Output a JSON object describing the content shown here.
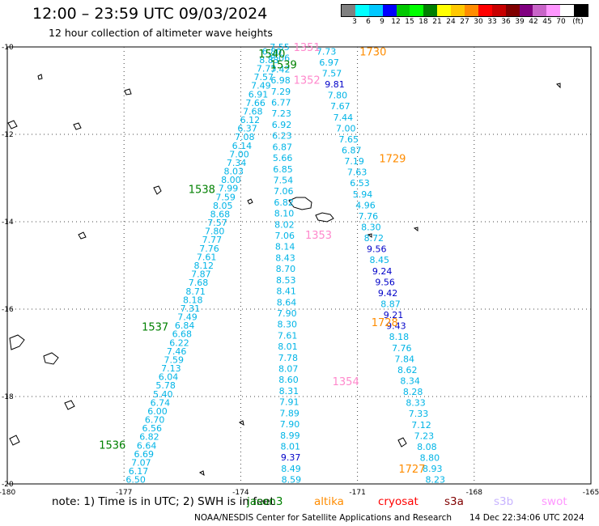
{
  "title": "12:00 – 23:59 UTC 09/03/2024",
  "subtitle": "12 hour collection of altimeter wave heights",
  "colorbar": {
    "colors": [
      "#808080",
      "#00ffff",
      "#00c8ff",
      "#0000ff",
      "#00c800",
      "#00ff00",
      "#008000",
      "#ffff00",
      "#ffc800",
      "#ff8c00",
      "#ff0000",
      "#c80000",
      "#800000",
      "#800080",
      "#c864c8",
      "#ff96ff",
      "#ffffff",
      "#000000"
    ],
    "labels": [
      "3",
      "6",
      "9",
      "12",
      "15",
      "18",
      "21",
      "24",
      "27",
      "30",
      "33",
      "36",
      "39",
      "42",
      "45",
      "70",
      "(ft)"
    ]
  },
  "axes": {
    "x_ticks": [
      "-180",
      "-177",
      "-174",
      "-171",
      "-168",
      "-165"
    ],
    "y_ticks": [
      "-10",
      "-12",
      "-14",
      "-16",
      "-18",
      "-20"
    ]
  },
  "chart_data": {
    "type": "scatter",
    "x_range": [
      -180,
      -165
    ],
    "y_range": [
      -20,
      -10
    ],
    "tracks": [
      {
        "lon_start": -173.2,
        "lat_start": -10.1,
        "lon_end": -176.7,
        "lat_end": -19.9,
        "color": "#00b4e6",
        "values": [
          "6.80",
          "8.83",
          "7.73",
          "7.57",
          "7.49",
          "6.91",
          "7.66",
          "7.68",
          "6.12",
          "6.37",
          "7.08",
          "6.14",
          "7.00",
          "7.34",
          "8.03",
          "8.00",
          "7.99",
          "7.59",
          "8.05",
          "8.68",
          "7.57",
          "7.80",
          "7.77",
          "7.76",
          "7.61",
          "8.12",
          "7.87",
          "7.68",
          "8.71",
          "8.18",
          "7.31",
          "7.49",
          "6.84",
          "6.68",
          "6.22",
          "7.46",
          "7.59",
          "7.13",
          "6.04",
          "5.78",
          "5.40",
          "6.74",
          "6.00",
          "6.70",
          "6.56",
          "6.82",
          "6.64",
          "6.69",
          "7.07",
          "6.17",
          "6.50"
        ]
      },
      {
        "lon_start": -173.0,
        "lat_start": -10.0,
        "lon_end": -172.7,
        "lat_end": -19.9,
        "color": "#00b4e6",
        "values": [
          "7.55",
          "8.06",
          "7.42",
          "6.98",
          "7.29",
          "6.77",
          "7.23",
          "6.92",
          "6.23",
          "6.87",
          "5.66",
          "6.85",
          "7.54",
          "7.06",
          "6.82",
          "8.10",
          "8.02",
          "7.06",
          "8.14",
          "8.43",
          "8.70",
          "8.53",
          "8.41",
          "8.64",
          "7.90",
          "8.30",
          "7.61",
          "8.01",
          "7.78",
          "8.07",
          "8.60",
          "8.31",
          "7.91",
          "7.89",
          "7.90",
          "8.99",
          "8.01",
          "9.37",
          "8.49",
          "8.59"
        ],
        "dark_indices": [
          37
        ]
      },
      {
        "lon_start": -171.8,
        "lat_start": -10.1,
        "lon_end": -169.0,
        "lat_end": -19.9,
        "color": "#00b4e6",
        "values": [
          "7.73",
          "6.97",
          "7.57",
          "9.81",
          "7.80",
          "7.67",
          "7.44",
          "7.00",
          "7.65",
          "6.87",
          "7.19",
          "7.63",
          "6.53",
          "5.94",
          "4.96",
          "7.76",
          "8.30",
          "8.72",
          "9.56",
          "8.45",
          "9.24",
          "9.56",
          "9.42",
          "8.87",
          "9.21",
          "9.43",
          "8.18",
          "7.76",
          "7.84",
          "8.62",
          "8.34",
          "8.28",
          "8.33",
          "7.33",
          "7.12",
          "7.23",
          "8.08",
          "8.80",
          "8.93",
          "8.23"
        ],
        "dark_indices": [
          3,
          18,
          20,
          21,
          22,
          24,
          25
        ]
      }
    ],
    "time_labels": [
      {
        "text": "1351",
        "color": "#ff88cc",
        "lon": -172.3,
        "lat": -10.0
      },
      {
        "text": "1730",
        "color": "#ff8c00",
        "lon": -170.6,
        "lat": -10.1
      },
      {
        "text": "1540",
        "color": "#008000",
        "lon": -173.2,
        "lat": -10.15
      },
      {
        "text": "1539",
        "color": "#008000",
        "lon": -172.9,
        "lat": -10.4
      },
      {
        "text": "1352",
        "color": "#ff88cc",
        "lon": -172.3,
        "lat": -10.75
      },
      {
        "text": "1729",
        "color": "#ff8c00",
        "lon": -170.1,
        "lat": -12.55
      },
      {
        "text": "1538",
        "color": "#008000",
        "lon": -175.0,
        "lat": -13.25
      },
      {
        "text": "1353",
        "color": "#ff88cc",
        "lon": -172.0,
        "lat": -14.3
      },
      {
        "text": "1537",
        "color": "#008000",
        "lon": -176.2,
        "lat": -16.4
      },
      {
        "text": "1728",
        "color": "#ff8c00",
        "lon": -170.3,
        "lat": -16.3
      },
      {
        "text": "1354",
        "color": "#ff88cc",
        "lon": -171.3,
        "lat": -17.65
      },
      {
        "text": "1536",
        "color": "#008000",
        "lon": -177.3,
        "lat": -19.1
      },
      {
        "text": "1727",
        "color": "#ff8c00",
        "lon": -169.6,
        "lat": -19.65
      }
    ]
  },
  "note": {
    "text": "note:  1) Time is in UTC; 2) SWH is in feet",
    "satellites": [
      {
        "name": "jason3",
        "color": "#008000"
      },
      {
        "name": "altika",
        "color": "#ff8c00"
      },
      {
        "name": "cryosat",
        "color": "#ff0000"
      },
      {
        "name": "s3a",
        "color": "#800000"
      },
      {
        "name": "s3b",
        "color": "#c8b4ff"
      },
      {
        "name": "swot",
        "color": "#ff96ff"
      }
    ]
  },
  "credit": "NOAA/NESDIS Center for Satellite Applications and Research",
  "timestamp": "14 Dec 22:34:06 UTC 2024"
}
